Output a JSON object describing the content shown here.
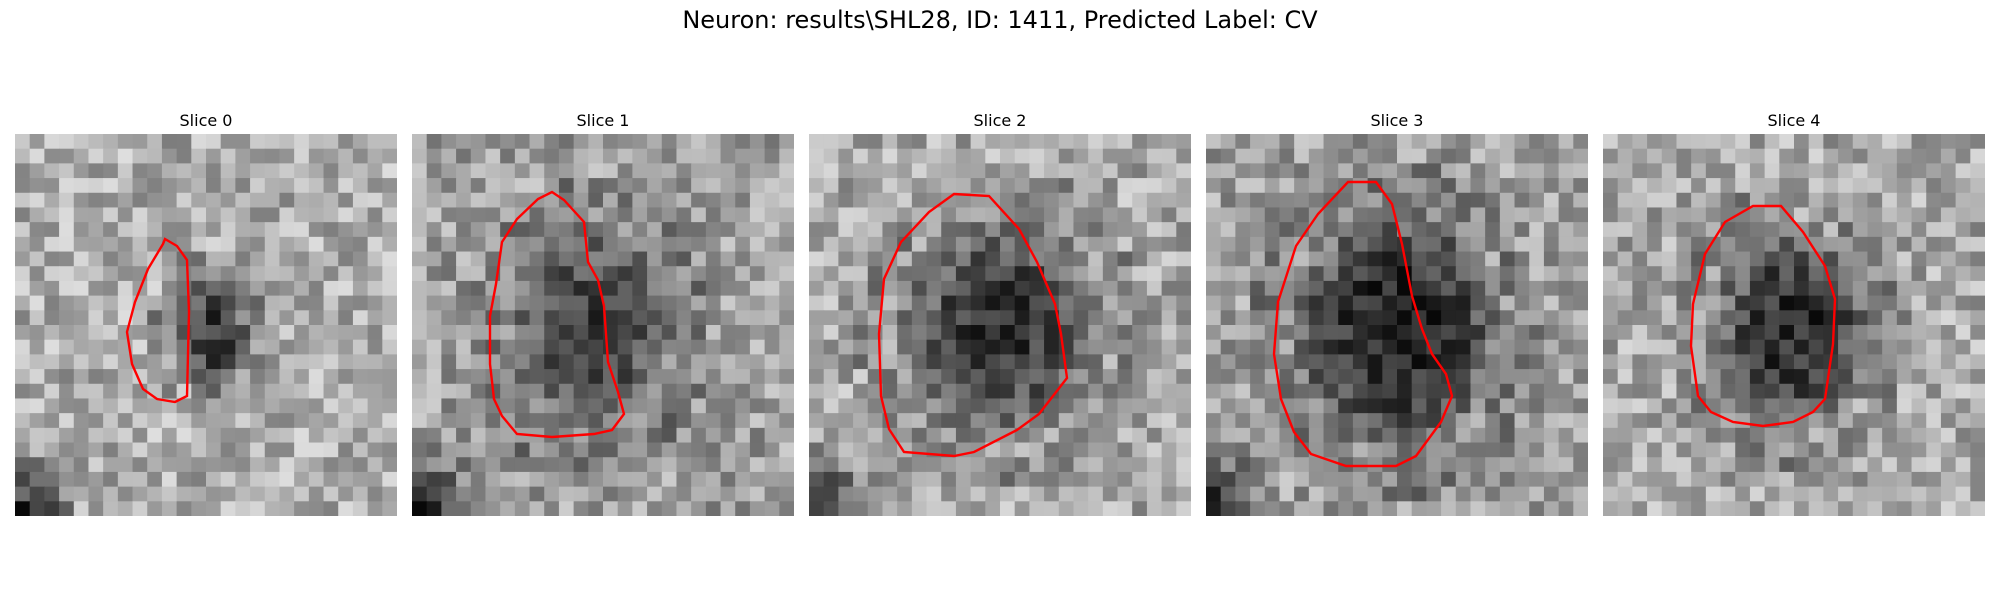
{
  "figure": {
    "suptitle": "Neuron: results\\SHL28, ID: 1411, Predicted Label: CV"
  },
  "panels": [
    {
      "title": "Slice 0"
    },
    {
      "title": "Slice 1"
    },
    {
      "title": "Slice 2"
    },
    {
      "title": "Slice 3"
    },
    {
      "title": "Slice 4"
    }
  ],
  "contour_color": "#ff0000",
  "colormap": "gray"
}
